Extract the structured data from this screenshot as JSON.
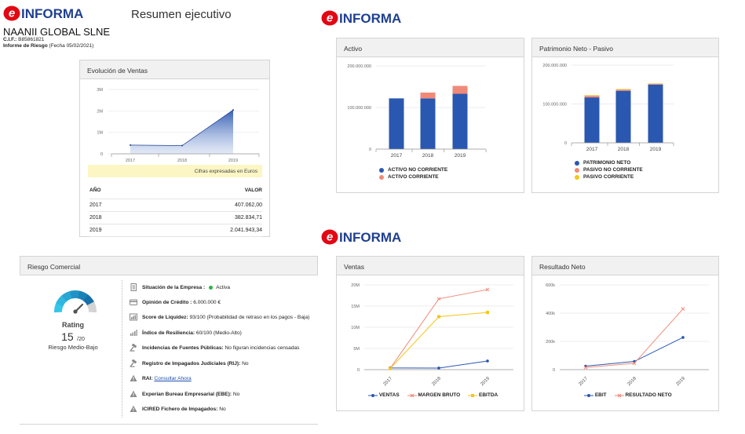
{
  "logo_text": "INFORMA",
  "header": {
    "title": "Resumen ejecutivo",
    "company": "NAANII GLOBAL SLNE",
    "cif_label": "C.I.F.:",
    "cif_value": "B85861821",
    "report_label": "Informe de Riesgo",
    "report_date": "(Fecha 05/02/2021)"
  },
  "ventas_panel": {
    "title": "Evolución de Ventas",
    "note": "Cifras expresadas en Euros",
    "col_year": "AÑO",
    "col_value": "VALOR",
    "rows": [
      {
        "year": "2017",
        "value": "407.062,00"
      },
      {
        "year": "2018",
        "value": "382.834,71"
      },
      {
        "year": "2019",
        "value": "2.041.943,34"
      }
    ]
  },
  "risk": {
    "title": "Riesgo Comercial",
    "rating_label": "Rating",
    "rating_value": "15",
    "rating_scale": "/20",
    "rating_text": "Riesgo Medio-Bajo",
    "items": [
      {
        "label": "Situación de la Empresa :",
        "value": "Activa"
      },
      {
        "label": "Opinión de Crédito :",
        "value": "6.000.000 €"
      },
      {
        "label": "Score de Liquidez:",
        "value": "93/100 (Probabilidad de retraso en los pagos - Baja)"
      },
      {
        "label": "Índice de Resiliencia:",
        "value": "60/100 (Medio-Alto)"
      },
      {
        "label": "Incidencias de Fuentes Públicas:",
        "value": "No figuran incidencias censadas"
      },
      {
        "label": "Registro de Impagados Judiciales (RIJ):",
        "value": "No"
      },
      {
        "label": "RAI:",
        "value": "Consultar Ahora"
      },
      {
        "label": "Experian Bureau Empresarial (EBE):",
        "value": "No"
      },
      {
        "label": "ICIRED Fichero de Impagados:",
        "value": "No"
      }
    ]
  },
  "chart_data": [
    {
      "type": "area",
      "title": "Evolución de Ventas",
      "categories": [
        "2017",
        "2018",
        "2019"
      ],
      "values": [
        407062.0,
        382834.71,
        2041943.34
      ],
      "yticks": [
        "0",
        "1M",
        "2M",
        "3M"
      ],
      "ylim": [
        0,
        3000000
      ]
    },
    {
      "type": "bar",
      "title": "Activo",
      "categories": [
        "2017",
        "2018",
        "2019"
      ],
      "yticks": [
        "0",
        "100.000.000",
        "200.000.000"
      ],
      "ylim": [
        0,
        200000000
      ],
      "stacked": true,
      "series": [
        {
          "name": "ACTIVO NO CORRIENTE",
          "color": "#2a57b0",
          "values": [
            122000000,
            122000000,
            133000000
          ]
        },
        {
          "name": "ACTIVO CORRIENTE",
          "color": "#f08a78",
          "values": [
            0,
            14000000,
            19000000
          ]
        }
      ]
    },
    {
      "type": "bar",
      "title": "Patrimonio Neto - Pasivo",
      "categories": [
        "2017",
        "2018",
        "2019"
      ],
      "yticks": [
        "0",
        "100.000.000",
        "200.000.000"
      ],
      "ylim": [
        0,
        200000000
      ],
      "stacked": true,
      "series": [
        {
          "name": "PATRIMONIO NETO",
          "color": "#2a57b0",
          "values": [
            117000000,
            134000000,
            150000000
          ]
        },
        {
          "name": "PASIVO NO CORRIENTE",
          "color": "#f08a78",
          "values": [
            4000000,
            3000000,
            2000000
          ]
        },
        {
          "name": "PASIVO CORRIENTE",
          "color": "#f5c518",
          "values": [
            1500000,
            1500000,
            1000000
          ]
        }
      ]
    },
    {
      "type": "line",
      "title": "Ventas",
      "categories": [
        "2017",
        "2018",
        "2019"
      ],
      "yticks": [
        "0",
        "5M",
        "10M",
        "15M",
        "20M"
      ],
      "ylim": [
        0,
        20000000
      ],
      "series": [
        {
          "name": "VENTAS",
          "color": "#2a57b0",
          "values": [
            400000,
            380000,
            2040000
          ]
        },
        {
          "name": "MARGEN BRUTO",
          "color": "#f08a78",
          "values": [
            300000,
            16700000,
            18900000
          ]
        },
        {
          "name": "EBITDA",
          "color": "#f5c518",
          "values": [
            250000,
            12500000,
            13500000
          ]
        }
      ]
    },
    {
      "type": "line",
      "title": "Resultado Neto",
      "categories": [
        "2017",
        "2018",
        "2019"
      ],
      "yticks": [
        "0",
        "200k",
        "400k",
        "600k"
      ],
      "ylim": [
        0,
        600000
      ],
      "series": [
        {
          "name": "EBIT",
          "color": "#2a57b0",
          "values": [
            25000,
            58000,
            228000
          ]
        },
        {
          "name": "RESULTADO NETO",
          "color": "#f08a78",
          "values": [
            15000,
            45000,
            430000
          ]
        }
      ]
    }
  ],
  "colors": {
    "brand_red": "#e30613",
    "brand_blue": "#1f3f8f",
    "green_status": "#2db341"
  }
}
